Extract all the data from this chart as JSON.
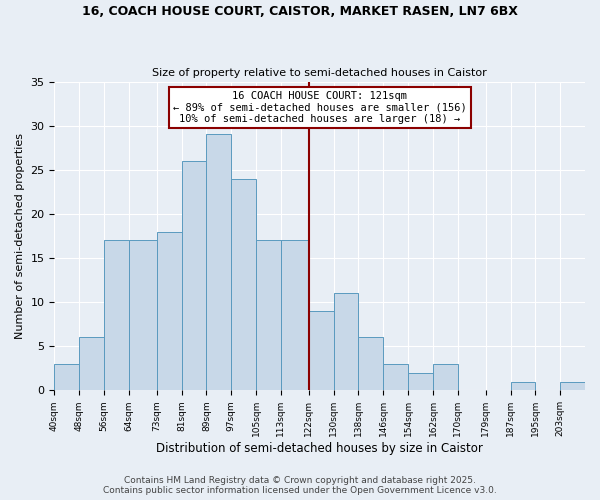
{
  "title1": "16, COACH HOUSE COURT, CAISTOR, MARKET RASEN, LN7 6BX",
  "title2": "Size of property relative to semi-detached houses in Caistor",
  "xlabel": "Distribution of semi-detached houses by size in Caistor",
  "ylabel": "Number of semi-detached properties",
  "bin_left_edges": [
    40,
    48,
    56,
    64,
    73,
    81,
    89,
    97,
    105,
    113,
    122,
    130,
    138,
    146,
    154,
    162,
    170,
    179,
    187,
    195,
    203
  ],
  "bar_heights": [
    3,
    6,
    17,
    17,
    18,
    26,
    29,
    24,
    17,
    17,
    9,
    11,
    6,
    3,
    2,
    3,
    0,
    0,
    1,
    0,
    1
  ],
  "bar_color": "#c8d8e8",
  "bar_edge_color": "#5a9abf",
  "vline_x": 122,
  "vline_color": "#8b0000",
  "annotation_title": "16 COACH HOUSE COURT: 121sqm",
  "annotation_line1": "← 89% of semi-detached houses are smaller (156)",
  "annotation_line2": "10% of semi-detached houses are larger (18) →",
  "annotation_box_color": "#8b0000",
  "ylim": [
    0,
    35
  ],
  "yticks": [
    0,
    5,
    10,
    15,
    20,
    25,
    30,
    35
  ],
  "footer1": "Contains HM Land Registry data © Crown copyright and database right 2025.",
  "footer2": "Contains public sector information licensed under the Open Government Licence v3.0.",
  "bg_color": "#e8eef5"
}
